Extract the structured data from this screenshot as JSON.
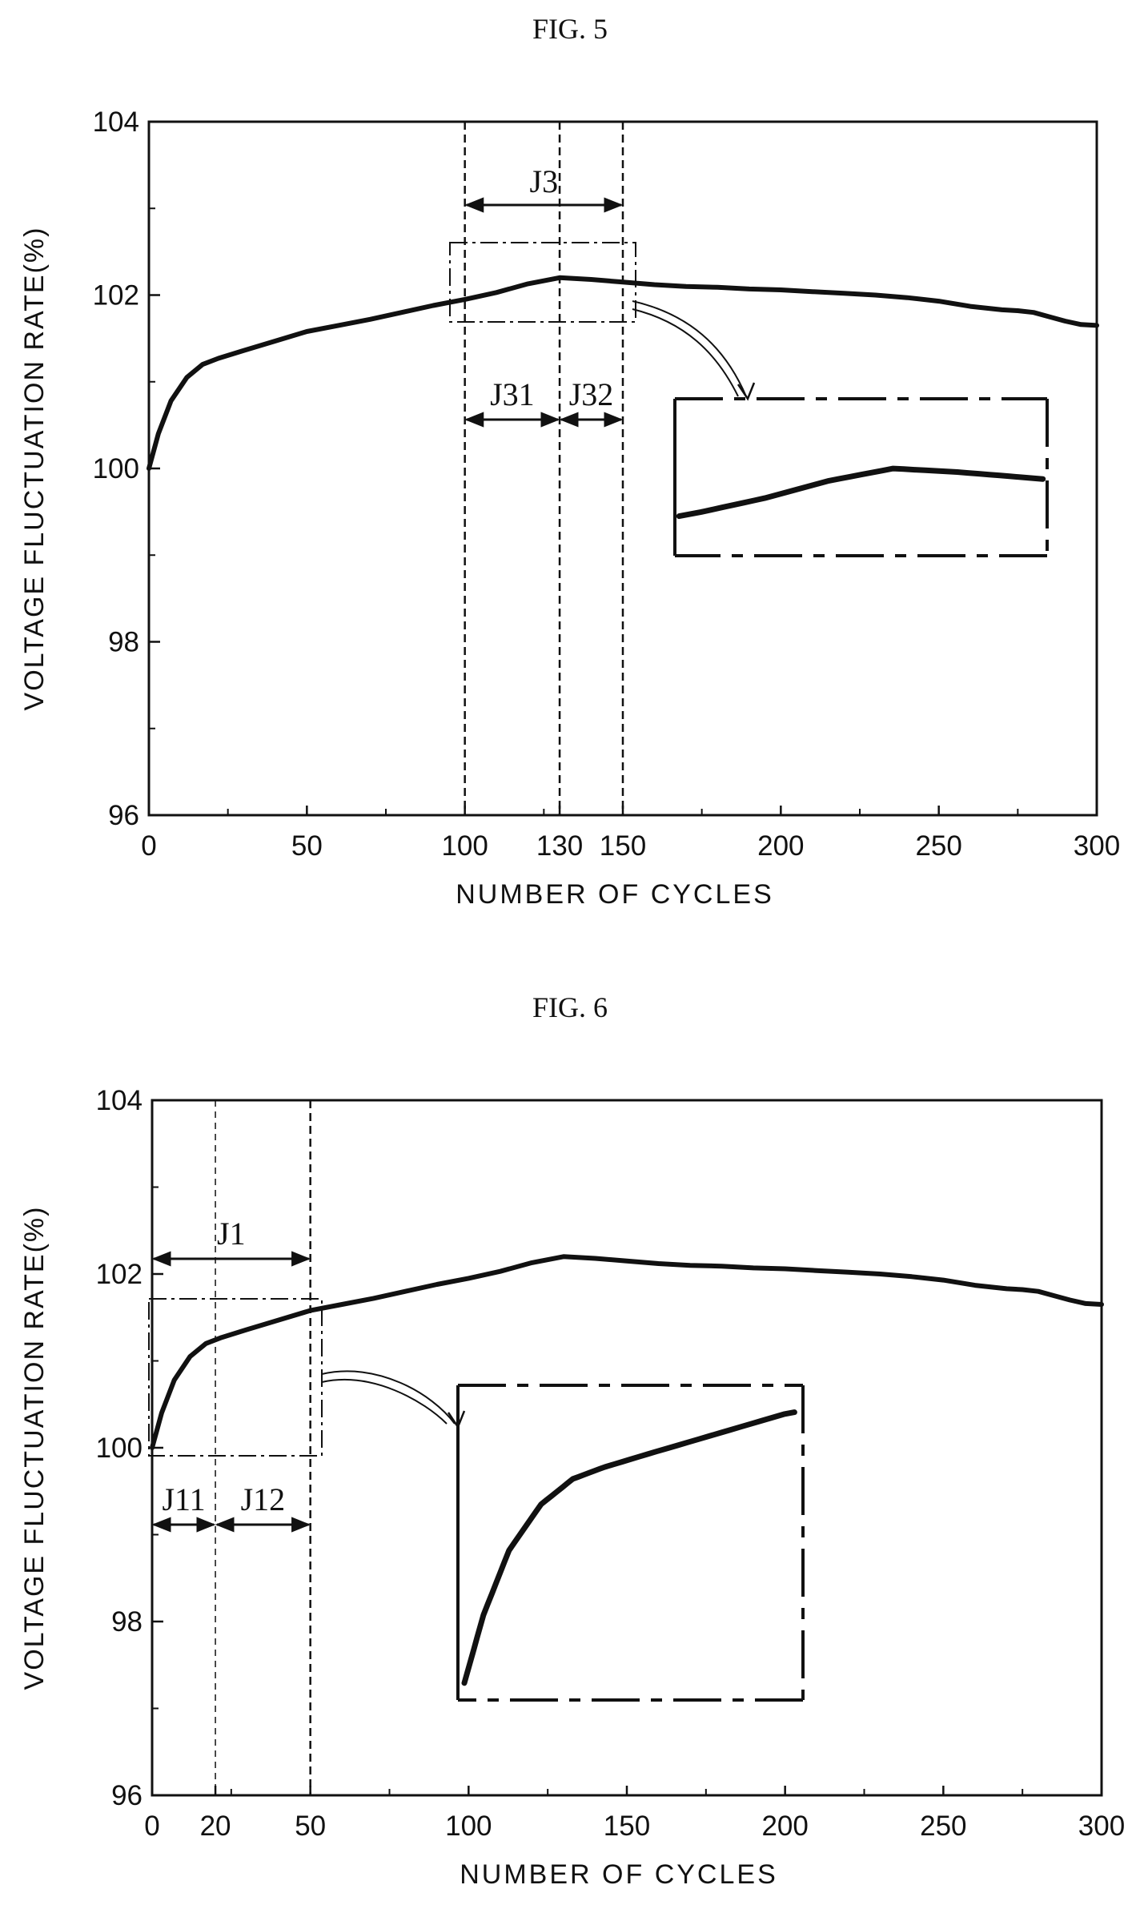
{
  "chart_data": [
    {
      "type": "line",
      "title": "FIG. 5",
      "xlabel": "NUMBER OF CYCLES",
      "ylabel": "VOLTAGE FLUCTUATION RATE(%)",
      "xlim": [
        0,
        300
      ],
      "ylim": [
        96,
        104
      ],
      "x_ticks": [
        0,
        50,
        100,
        130,
        150,
        200,
        250,
        300
      ],
      "y_ticks": [
        96,
        98,
        100,
        102,
        104
      ],
      "x_tick_labels": [
        "0",
        "50",
        "100",
        "130",
        "150",
        "200",
        "250",
        "300"
      ],
      "y_tick_labels": [
        "96",
        "98",
        "100",
        "102",
        "104"
      ],
      "grid": false,
      "series": [
        {
          "x": [
            0,
            3,
            7,
            12,
            17,
            22,
            30,
            40,
            50,
            60,
            70,
            80,
            90,
            100,
            110,
            120,
            130,
            140,
            150,
            160,
            170,
            180,
            190,
            200,
            210,
            220,
            230,
            240,
            250,
            260,
            270,
            275,
            280,
            285,
            290,
            295,
            300
          ],
          "y": [
            100.0,
            100.4,
            100.78,
            101.05,
            101.2,
            101.27,
            101.36,
            101.47,
            101.58,
            101.65,
            101.72,
            101.8,
            101.88,
            101.95,
            102.03,
            102.13,
            102.2,
            102.18,
            102.15,
            102.12,
            102.1,
            102.09,
            102.07,
            102.06,
            102.04,
            102.02,
            102.0,
            101.97,
            101.93,
            101.87,
            101.83,
            101.82,
            101.8,
            101.75,
            101.7,
            101.66,
            101.65
          ]
        }
      ],
      "vlines": [
        100,
        130,
        150
      ],
      "annotations": [
        {
          "label": "J3",
          "from": 100,
          "to": 150
        },
        {
          "label": "J31",
          "from": 100,
          "to": 130
        },
        {
          "label": "J32",
          "from": 130,
          "to": 150
        }
      ],
      "zoom_region": {
        "x": [
          96,
          154
        ],
        "y": [
          101.7,
          102.6
        ]
      }
    },
    {
      "type": "line",
      "title": "FIG. 6",
      "xlabel": "NUMBER OF CYCLES",
      "ylabel": "VOLTAGE FLUCTUATION RATE(%)",
      "xlim": [
        0,
        300
      ],
      "ylim": [
        96,
        104
      ],
      "x_ticks": [
        0,
        20,
        50,
        100,
        150,
        200,
        250,
        300
      ],
      "y_ticks": [
        96,
        98,
        100,
        102,
        104
      ],
      "x_tick_labels": [
        "0",
        "20",
        "50",
        "100",
        "150",
        "200",
        "250",
        "300"
      ],
      "y_tick_labels": [
        "96",
        "98",
        "100",
        "102",
        "104"
      ],
      "grid": false,
      "series": [
        {
          "x": [
            0,
            3,
            7,
            12,
            17,
            22,
            30,
            40,
            50,
            60,
            70,
            80,
            90,
            100,
            110,
            120,
            130,
            140,
            150,
            160,
            170,
            180,
            190,
            200,
            210,
            220,
            230,
            240,
            250,
            260,
            270,
            275,
            280,
            285,
            290,
            295,
            300
          ],
          "y": [
            100.0,
            100.4,
            100.78,
            101.05,
            101.2,
            101.27,
            101.36,
            101.47,
            101.58,
            101.65,
            101.72,
            101.8,
            101.88,
            101.95,
            102.03,
            102.13,
            102.2,
            102.18,
            102.15,
            102.12,
            102.1,
            102.09,
            102.07,
            102.06,
            102.04,
            102.02,
            102.0,
            101.97,
            101.93,
            101.87,
            101.83,
            101.82,
            101.8,
            101.75,
            101.7,
            101.66,
            101.65
          ]
        }
      ],
      "vlines": [
        20,
        50
      ],
      "annotations": [
        {
          "label": "J1",
          "from": 0,
          "to": 50
        },
        {
          "label": "J11",
          "from": 0,
          "to": 20
        },
        {
          "label": "J12",
          "from": 20,
          "to": 50
        }
      ],
      "zoom_region": {
        "x": [
          -1,
          53
        ],
        "y": [
          99.9,
          101.75
        ]
      }
    }
  ]
}
